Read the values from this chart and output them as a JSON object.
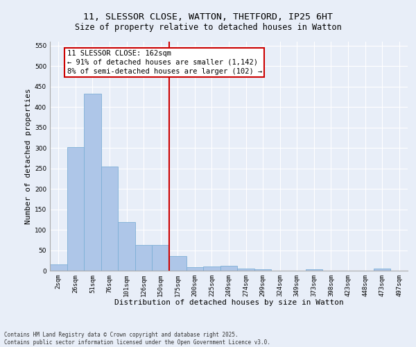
{
  "title_line1": "11, SLESSOR CLOSE, WATTON, THETFORD, IP25 6HT",
  "title_line2": "Size of property relative to detached houses in Watton",
  "xlabel": "Distribution of detached houses by size in Watton",
  "ylabel": "Number of detached properties",
  "bar_labels": [
    "2sqm",
    "26sqm",
    "51sqm",
    "76sqm",
    "101sqm",
    "126sqm",
    "150sqm",
    "175sqm",
    "200sqm",
    "225sqm",
    "249sqm",
    "274sqm",
    "299sqm",
    "324sqm",
    "349sqm",
    "373sqm",
    "398sqm",
    "423sqm",
    "448sqm",
    "473sqm",
    "497sqm"
  ],
  "bar_values": [
    15,
    302,
    432,
    254,
    118,
    63,
    63,
    35,
    8,
    10,
    12,
    5,
    3,
    0,
    0,
    3,
    0,
    0,
    0,
    5,
    0
  ],
  "bar_color": "#aec6e8",
  "bar_edge_color": "#7dafd6",
  "vline_x": 7.0,
  "vline_color": "#cc0000",
  "annotation_title": "11 SLESSOR CLOSE: 162sqm",
  "annotation_line1": "← 91% of detached houses are smaller (1,142)",
  "annotation_line2": "8% of semi-detached houses are larger (102) →",
  "annotation_box_color": "#ffffff",
  "annotation_box_edge": "#cc0000",
  "ylim": [
    0,
    560
  ],
  "yticks": [
    0,
    50,
    100,
    150,
    200,
    250,
    300,
    350,
    400,
    450,
    500,
    550
  ],
  "background_color": "#e8eef8",
  "grid_color": "#ffffff",
  "footer_line1": "Contains HM Land Registry data © Crown copyright and database right 2025.",
  "footer_line2": "Contains public sector information licensed under the Open Government Licence v3.0.",
  "title_fontsize": 9.5,
  "subtitle_fontsize": 8.5,
  "axis_label_fontsize": 8,
  "tick_fontsize": 6.5,
  "annotation_fontsize": 7.5,
  "footer_fontsize": 5.5
}
